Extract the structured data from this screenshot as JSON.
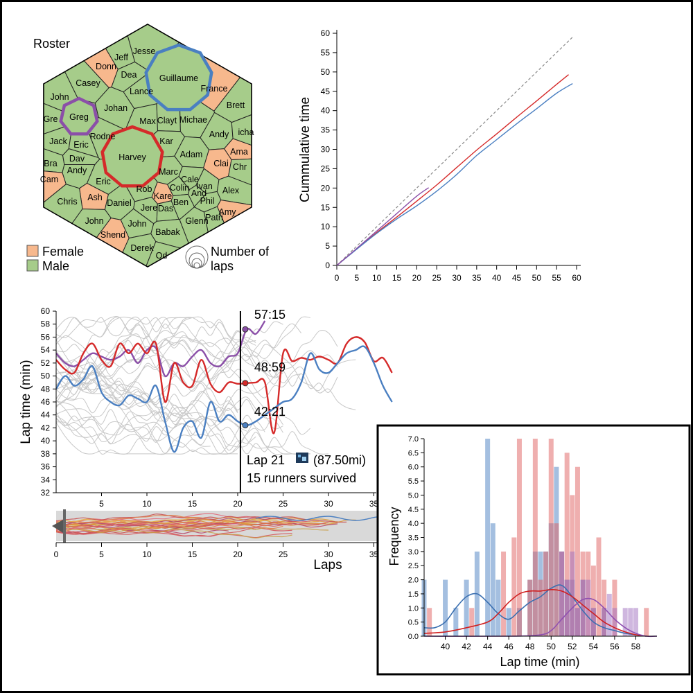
{
  "roster": {
    "title": "Roster",
    "legend": {
      "female": "Female",
      "male": "Male",
      "laps_line1": "Number of",
      "laps_line2": "laps"
    },
    "female_color": "#f7b88d",
    "male_color": "#a6cc8a",
    "highlight_colors": {
      "blue": "#4a7fc1",
      "red": "#d52a2a",
      "purple": "#8b4fa8"
    },
    "runners": [
      {
        "name": "Jesse",
        "sex": "M"
      },
      {
        "name": "Jeff",
        "sex": "M"
      },
      {
        "name": "Donn",
        "sex": "F"
      },
      {
        "name": "Dea",
        "sex": "M"
      },
      {
        "name": "Guillaume",
        "sex": "M",
        "highlight": "blue"
      },
      {
        "name": "France",
        "sex": "F"
      },
      {
        "name": "Casey",
        "sex": "M"
      },
      {
        "name": "Lance",
        "sex": "M"
      },
      {
        "name": "John",
        "sex": "M"
      },
      {
        "name": "Johan",
        "sex": "M"
      },
      {
        "name": "Brett",
        "sex": "M"
      },
      {
        "name": "Greg",
        "sex": "M",
        "highlight": "purple"
      },
      {
        "name": "Gre",
        "sex": "M"
      },
      {
        "name": "Max",
        "sex": "M"
      },
      {
        "name": "Clayt",
        "sex": "M"
      },
      {
        "name": "Michae",
        "sex": "M"
      },
      {
        "name": "Andy",
        "sex": "M"
      },
      {
        "name": "icha",
        "sex": "M"
      },
      {
        "name": "Rodne",
        "sex": "M"
      },
      {
        "name": "Jack",
        "sex": "M"
      },
      {
        "name": "Eric",
        "sex": "M"
      },
      {
        "name": "Harvey",
        "sex": "M",
        "highlight": "red"
      },
      {
        "name": "Kar",
        "sex": "M"
      },
      {
        "name": "Adam",
        "sex": "M"
      },
      {
        "name": "Ama",
        "sex": "F"
      },
      {
        "name": "Bra",
        "sex": "M"
      },
      {
        "name": "Dav",
        "sex": "M"
      },
      {
        "name": "Clai",
        "sex": "F"
      },
      {
        "name": "Chr",
        "sex": "M"
      },
      {
        "name": "Andy",
        "sex": "M"
      },
      {
        "name": "Marc",
        "sex": "M"
      },
      {
        "name": "Cam",
        "sex": "F"
      },
      {
        "name": "Eric",
        "sex": "M"
      },
      {
        "name": "Cale",
        "sex": "M"
      },
      {
        "name": "Rob",
        "sex": "M"
      },
      {
        "name": "Colin",
        "sex": "M"
      },
      {
        "name": "Ivan",
        "sex": "M"
      },
      {
        "name": "Alex",
        "sex": "M"
      },
      {
        "name": "Ash",
        "sex": "F"
      },
      {
        "name": "Kare",
        "sex": "F"
      },
      {
        "name": "And",
        "sex": "M"
      },
      {
        "name": "Chris",
        "sex": "M"
      },
      {
        "name": "Daniel",
        "sex": "M"
      },
      {
        "name": "Jere",
        "sex": "M"
      },
      {
        "name": "Das",
        "sex": "M"
      },
      {
        "name": "Ben",
        "sex": "M"
      },
      {
        "name": "Phil",
        "sex": "M"
      },
      {
        "name": "Amy",
        "sex": "F"
      },
      {
        "name": "Patri",
        "sex": "M"
      },
      {
        "name": "John",
        "sex": "M"
      },
      {
        "name": "Glenn",
        "sex": "M"
      },
      {
        "name": "John",
        "sex": "M"
      },
      {
        "name": "Shend",
        "sex": "F"
      },
      {
        "name": "Babak",
        "sex": "M"
      },
      {
        "name": "Derek",
        "sex": "M"
      },
      {
        "name": "Od",
        "sex": "M"
      }
    ]
  },
  "chart_data": [
    {
      "type": "line",
      "title": "",
      "xlabel": "",
      "ylabel": "Cummulative time",
      "xlim": [
        0,
        60
      ],
      "ylim": [
        0,
        60
      ],
      "xticks": [
        "0",
        "5",
        "10",
        "15",
        "20",
        "25",
        "30",
        "35",
        "40",
        "45",
        "50",
        "55",
        "60"
      ],
      "yticks": [
        "0",
        "5",
        "10",
        "15",
        "20",
        "25",
        "30",
        "35",
        "40",
        "45",
        "50",
        "55",
        "60"
      ],
      "series": [
        {
          "key": "ref",
          "color": "#888888",
          "dashed": true,
          "x": [
            0,
            59
          ],
          "y": [
            0,
            59
          ]
        },
        {
          "key": "red",
          "color": "#d52a2a",
          "x": [
            0,
            5,
            10,
            15,
            20,
            25,
            30,
            35,
            40,
            45,
            50,
            55,
            58
          ],
          "y": [
            0,
            4.3,
            8.5,
            12.5,
            16.6,
            20.8,
            25.3,
            29.8,
            34,
            38.3,
            42.5,
            46.8,
            49.3
          ]
        },
        {
          "key": "blue",
          "color": "#4a7fc1",
          "x": [
            0,
            5,
            10,
            15,
            20,
            25,
            30,
            35,
            40,
            45,
            50,
            55,
            59
          ],
          "y": [
            0,
            4.2,
            8.3,
            12,
            15.4,
            19.2,
            23.5,
            28.4,
            32.5,
            36.6,
            40.5,
            44.5,
            47
          ]
        },
        {
          "key": "purple",
          "color": "#8b4fa8",
          "x": [
            0,
            5,
            10,
            15,
            20,
            23
          ],
          "y": [
            0,
            4.4,
            8.9,
            13.4,
            17.9,
            20.1
          ]
        }
      ]
    },
    {
      "type": "line",
      "title": "",
      "xlabel": "",
      "ylabel": "Lap time (min)",
      "xlim": [
        0,
        37
      ],
      "ylim": [
        32,
        60
      ],
      "xticks": [
        "5",
        "10",
        "15",
        "20",
        "25",
        "30",
        "35"
      ],
      "yticks": [
        "32",
        "34",
        "36",
        "38",
        "40",
        "42",
        "44",
        "46",
        "48",
        "50",
        "52",
        "54",
        "56",
        "58",
        "60"
      ],
      "series": [
        {
          "key": "purple",
          "color": "#8b4fa8",
          "x": [
            0,
            1,
            2,
            3,
            4,
            5,
            6,
            7,
            8,
            9,
            10,
            11,
            12,
            13,
            14,
            15,
            16,
            17,
            18,
            19,
            20,
            21,
            22,
            23
          ],
          "y": [
            53.5,
            52,
            51.5,
            52.5,
            53.5,
            53,
            52.5,
            53,
            54,
            52,
            54,
            54.3,
            50,
            52,
            51.5,
            53,
            54,
            52,
            51.5,
            53,
            53.5,
            57.2,
            56.5,
            58.5
          ]
        },
        {
          "key": "red",
          "color": "#d52a2a",
          "x": [
            0,
            1,
            2,
            3,
            4,
            5,
            6,
            7,
            8,
            9,
            10,
            11,
            12,
            13,
            14,
            15,
            16,
            17,
            18,
            19,
            20,
            21,
            22,
            23,
            24,
            25,
            26,
            27,
            28,
            29,
            30,
            31,
            32,
            33,
            34,
            35,
            36,
            37
          ],
          "y": [
            52.5,
            51,
            50.5,
            53.5,
            55,
            52.5,
            51.5,
            55,
            53.5,
            55,
            53.5,
            55,
            46,
            52,
            49,
            48.5,
            52.5,
            48.8,
            47.5,
            49,
            48.8,
            48.9,
            49,
            49,
            41.2,
            53.5,
            52.3,
            52.8,
            52.5,
            53,
            52.5,
            52,
            55,
            56,
            55.2,
            52.3,
            52.8,
            50.5
          ]
        },
        {
          "key": "blue",
          "color": "#4a7fc1",
          "x": [
            0,
            1,
            2,
            3,
            4,
            5,
            6,
            7,
            8,
            9,
            10,
            11,
            12,
            13,
            14,
            15,
            16,
            17,
            18,
            19,
            20,
            21,
            22,
            23,
            24,
            25,
            26,
            27,
            28,
            29,
            30,
            31,
            32,
            33,
            34,
            35,
            36,
            37
          ],
          "y": [
            48,
            50,
            48.5,
            49.5,
            51.5,
            47.5,
            46,
            45.5,
            47,
            46.5,
            46,
            48.5,
            43,
            38.3,
            42,
            43,
            40.5,
            46,
            43,
            44,
            43,
            42.4,
            43,
            44,
            45,
            46,
            46.5,
            49,
            53.5,
            51,
            50.5,
            52,
            53.5,
            54,
            54.5,
            52,
            48.5,
            46
          ]
        }
      ],
      "annotations": {
        "cursor_lap": 20.3,
        "purple_time": "57:15",
        "red_time": "48:59",
        "blue_time": "42:21",
        "lap_label": "Lap 21",
        "distance": "(87.50mi)",
        "survivors": "15 runners survived"
      }
    },
    {
      "type": "line",
      "title": "",
      "xlabel": "Laps",
      "ylabel": "",
      "xlim": [
        0,
        37
      ],
      "xticks": [
        "0",
        "5",
        "10",
        "15",
        "20",
        "25",
        "30",
        "35"
      ]
    },
    {
      "type": "bar",
      "title": "",
      "xlabel": "Lap time (min)",
      "ylabel": "Frequency",
      "xlim": [
        38,
        60
      ],
      "ylim": [
        0,
        7
      ],
      "xticks": [
        "40",
        "42",
        "44",
        "46",
        "48",
        "50",
        "52",
        "54",
        "56",
        "58"
      ],
      "yticks": [
        "0.0",
        "0.5",
        "1.0",
        "1.5",
        "2.0",
        "2.5",
        "3.0",
        "3.5",
        "4.0",
        "4.5",
        "5.0",
        "5.5",
        "6.0",
        "6.5",
        "7.0"
      ],
      "series": [
        {
          "key": "blue",
          "color": "#4a7fc1",
          "x": [
            38,
            40,
            41,
            42,
            43,
            44,
            44.5,
            45,
            46,
            47,
            48,
            48.5,
            49,
            49.5,
            50,
            50.5,
            51,
            51.5,
            52,
            52.5,
            53,
            54,
            55
          ],
          "y": [
            2,
            2,
            1,
            2,
            3,
            7,
            4,
            2,
            1,
            1,
            2,
            3,
            3,
            3,
            4,
            6,
            3,
            2,
            2,
            1,
            2,
            1,
            1
          ]
        },
        {
          "key": "red",
          "color": "#e06060",
          "x": [
            38.5,
            42.5,
            45.5,
            46.5,
            47,
            48,
            48.5,
            49,
            49.5,
            50,
            50.5,
            51,
            51.5,
            52,
            52.5,
            53,
            53.5,
            54,
            54.5,
            55,
            56,
            59
          ],
          "y": [
            1,
            1,
            3,
            3.5,
            7,
            2,
            7,
            2,
            3,
            7,
            4,
            3,
            6.5,
            5,
            6,
            3,
            3,
            2.5,
            3.5,
            2,
            2,
            1
          ]
        },
        {
          "key": "purple",
          "color": "#a070c0",
          "x": [
            51,
            51.5,
            52,
            52.5,
            53,
            53.5,
            54,
            55,
            55.5,
            56,
            57,
            57.5,
            58
          ],
          "y": [
            3,
            2,
            3,
            1,
            2,
            2,
            1,
            1,
            1.5,
            1,
            1,
            1,
            1
          ]
        }
      ],
      "kde": [
        {
          "key": "blue",
          "color": "#3a6fb0",
          "x": [
            38,
            39,
            40,
            41,
            42,
            43,
            44,
            45,
            46,
            47,
            48,
            49,
            50,
            51,
            52,
            53,
            54,
            55,
            56,
            57,
            58,
            59
          ],
          "y": [
            0.3,
            0.3,
            0.5,
            1,
            1.4,
            1.5,
            1.2,
            0.8,
            0.6,
            0.9,
            1.2,
            1.4,
            1.7,
            1.8,
            1.4,
            0.9,
            0.5,
            0.3,
            0.2,
            0.1,
            0.05,
            0
          ]
        },
        {
          "key": "red",
          "color": "#d02020",
          "x": [
            38,
            40,
            42,
            44,
            45,
            46,
            47,
            48,
            49,
            50,
            51,
            52,
            53,
            54,
            55,
            56,
            57,
            58,
            59
          ],
          "y": [
            0.1,
            0.15,
            0.3,
            0.5,
            0.8,
            1.2,
            1.5,
            1.6,
            1.6,
            1.65,
            1.6,
            1.4,
            1.1,
            0.8,
            0.5,
            0.3,
            0.15,
            0.05,
            0
          ]
        },
        {
          "key": "purple",
          "color": "#9050b0",
          "x": [
            38,
            46,
            49,
            50,
            51,
            52,
            53,
            54,
            55,
            56,
            57,
            58,
            59,
            60
          ],
          "y": [
            0,
            0,
            0.05,
            0.2,
            0.6,
            1,
            1.3,
            1.3,
            1,
            0.6,
            0.3,
            0.1,
            0,
            0
          ]
        }
      ]
    }
  ]
}
